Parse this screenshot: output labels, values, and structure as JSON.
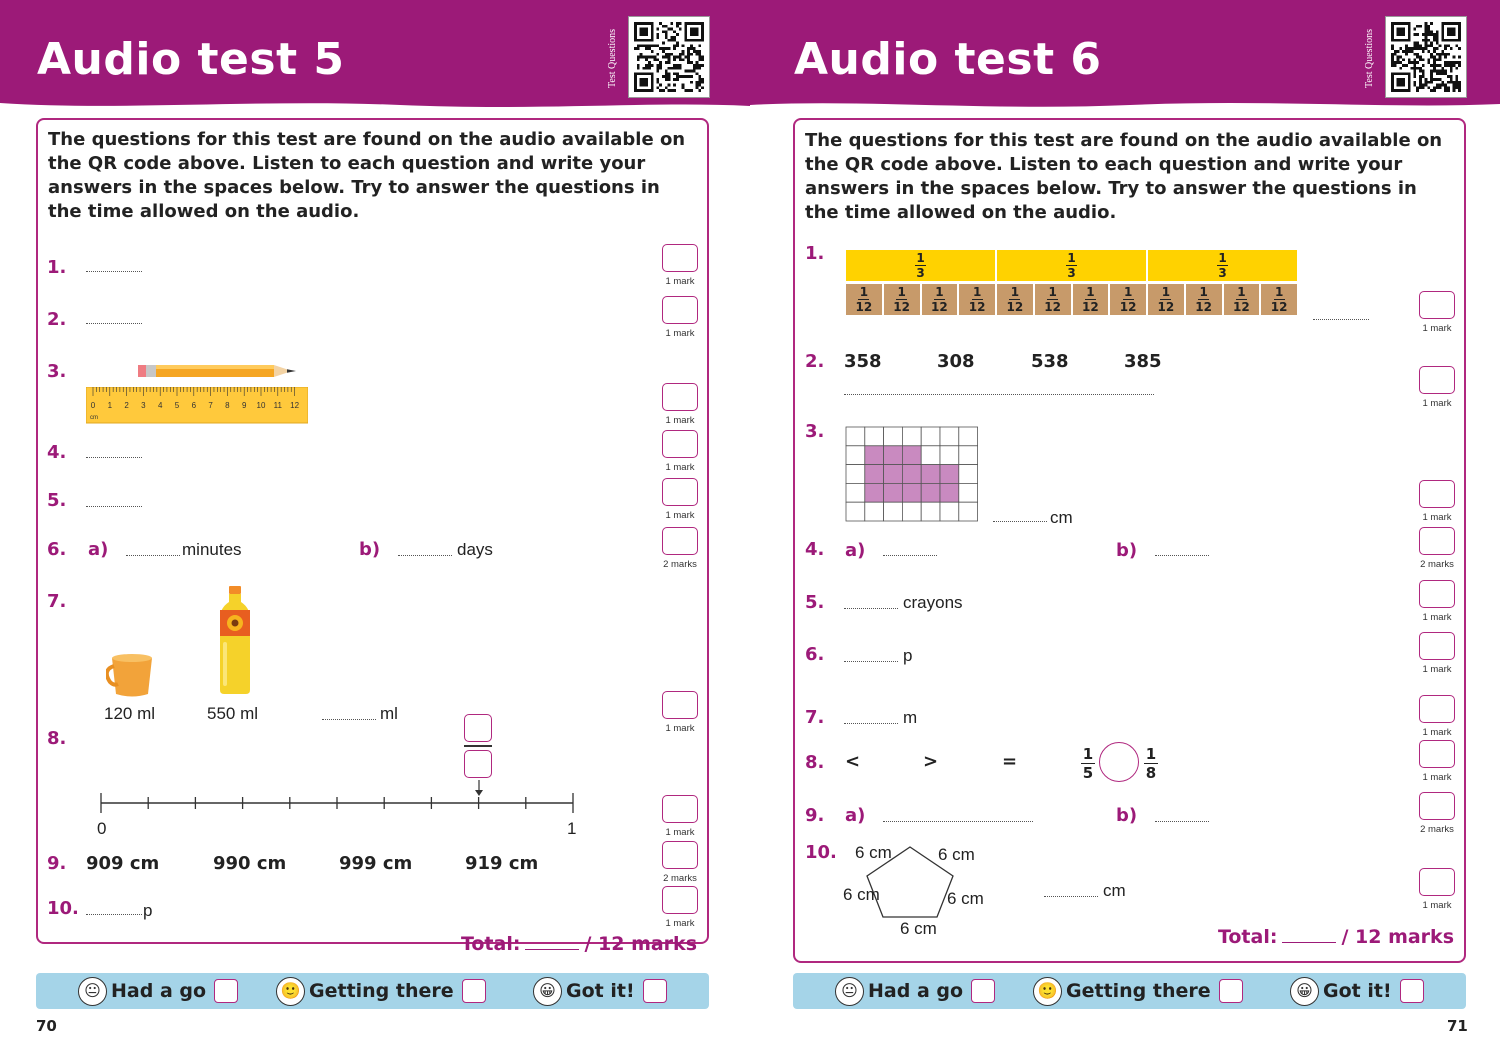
{
  "left": {
    "title": "Audio test 5",
    "qr_label": "Test Questions",
    "intro": "The questions for this test are found on the audio available on the QR code above. Listen to each question and write your answers in the spaces below. Try to answer the questions in the time allowed on the audio.",
    "q_numbers": [
      "1.",
      "2.",
      "3.",
      "4.",
      "5.",
      "6.",
      "7.",
      "8.",
      "9.",
      "10."
    ],
    "q6": {
      "a_label": "a)",
      "a_unit": "minutes",
      "b_label": "b)",
      "b_unit": "days"
    },
    "ruler": {
      "ticks": [
        "0",
        "1",
        "2",
        "3",
        "4",
        "5",
        "6",
        "7",
        "8",
        "9",
        "10",
        "11",
        "12"
      ],
      "unit": "cm"
    },
    "q7": {
      "cup_label": "120 ml",
      "bottle_label": "550 ml",
      "answer_unit": "ml"
    },
    "q8": {
      "start": "0",
      "end": "1"
    },
    "q9": {
      "options": [
        "909 cm",
        "990 cm",
        "999 cm",
        "919 cm"
      ]
    },
    "q10": {
      "unit": "p"
    },
    "marks": [
      "1 mark",
      "1 mark",
      "1 mark",
      "1 mark",
      "1 mark",
      "2 marks",
      "1 mark",
      "1 mark",
      "2 marks",
      "1 mark"
    ],
    "total": {
      "label": "Total:",
      "suffix": "/ 12 marks"
    },
    "page_number": "70"
  },
  "right": {
    "title": "Audio test 6",
    "qr_label": "Test Questions",
    "intro": "The questions for this test are found on the audio available on the QR code above. Listen to each question and write your answers in the spaces below. Try to answer the questions in the time allowed on the audio.",
    "q_numbers": [
      "1.",
      "2.",
      "3.",
      "4.",
      "5.",
      "6.",
      "7.",
      "8.",
      "9.",
      "10."
    ],
    "q1": {
      "third": {
        "num": "1",
        "den": "3"
      },
      "twelfth": {
        "num": "1",
        "den": "12"
      }
    },
    "q2": {
      "numbers": [
        "358",
        "308",
        "538",
        "385"
      ]
    },
    "q3": {
      "unit": "cm"
    },
    "q4": {
      "a_label": "a)",
      "b_label": "b)"
    },
    "q5": {
      "unit": "crayons"
    },
    "q6": {
      "unit": "p"
    },
    "q7": {
      "unit": "m"
    },
    "q8": {
      "symbols": [
        "<",
        ">",
        "="
      ],
      "left_fraction": {
        "num": "1",
        "den": "5"
      },
      "right_fraction": {
        "num": "1",
        "den": "8"
      }
    },
    "q9": {
      "a_label": "a)",
      "b_label": "b)"
    },
    "q10": {
      "side_labels": [
        "6 cm",
        "6 cm",
        "6 cm",
        "6 cm",
        "6 cm"
      ],
      "answer_unit": "cm"
    },
    "marks": [
      "1 mark",
      "1 mark",
      "1 mark",
      "2 marks",
      "1 mark",
      "1 mark",
      "1 mark",
      "1 mark",
      "2 marks",
      "1 mark"
    ],
    "total": {
      "label": "Total:",
      "suffix": "/ 12 marks"
    },
    "page_number": "71"
  },
  "footer": {
    "had_a_go": "Had a go",
    "getting_there": "Getting there",
    "got_it": "Got it!"
  },
  "colors": {
    "banner": "#9c1a78",
    "accent": "#b0287f",
    "footer": "#a5d4e8",
    "thirds": "#ffd200",
    "twelfths": "#c79a6a",
    "shaded": "#c98ac0"
  }
}
